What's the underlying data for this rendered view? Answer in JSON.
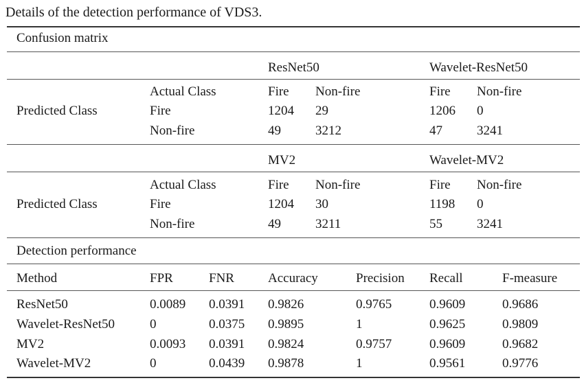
{
  "caption": "Details of the detection performance of VDS3.",
  "confusion_section_title": "Confusion matrix",
  "matrices": [
    {
      "left_model": "ResNet50",
      "right_model": "Wavelet-ResNet50",
      "row_header": "Predicted Class",
      "labels": [
        "Actual Class",
        "Fire",
        "Non-fire"
      ],
      "left_cols": [
        "Fire",
        "Non-fire"
      ],
      "right_cols": [
        "Fire",
        "Non-fire"
      ],
      "left_values": [
        [
          "1204",
          "29"
        ],
        [
          "49",
          "3212"
        ]
      ],
      "right_values": [
        [
          "1206",
          "0"
        ],
        [
          "47",
          "3241"
        ]
      ]
    },
    {
      "left_model": "MV2",
      "right_model": "Wavelet-MV2",
      "row_header": "Predicted Class",
      "labels": [
        "Actual Class",
        "Fire",
        "Non-fire"
      ],
      "left_cols": [
        "Fire",
        "Non-fire"
      ],
      "right_cols": [
        "Fire",
        "Non-fire"
      ],
      "left_values": [
        [
          "1204",
          "30"
        ],
        [
          "49",
          "3211"
        ]
      ],
      "right_values": [
        [
          "1198",
          "0"
        ],
        [
          "55",
          "3241"
        ]
      ]
    }
  ],
  "performance_section_title": "Detection performance",
  "performance": {
    "headers": [
      "Method",
      "FPR",
      "FNR",
      "Accuracy",
      "Precision",
      "Recall",
      "F-measure"
    ],
    "rows": [
      [
        "ResNet50",
        "0.0089",
        "0.0391",
        "0.9826",
        "0.9765",
        "0.9609",
        "0.9686"
      ],
      [
        "Wavelet-ResNet50",
        "0",
        "0.0375",
        "0.9895",
        "1",
        "0.9625",
        "0.9809"
      ],
      [
        "MV2",
        "0.0093",
        "0.0391",
        "0.9824",
        "0.9757",
        "0.9609",
        "0.9682"
      ],
      [
        "Wavelet-MV2",
        "0",
        "0.0439",
        "0.9878",
        "1",
        "0.9561",
        "0.9776"
      ]
    ]
  }
}
